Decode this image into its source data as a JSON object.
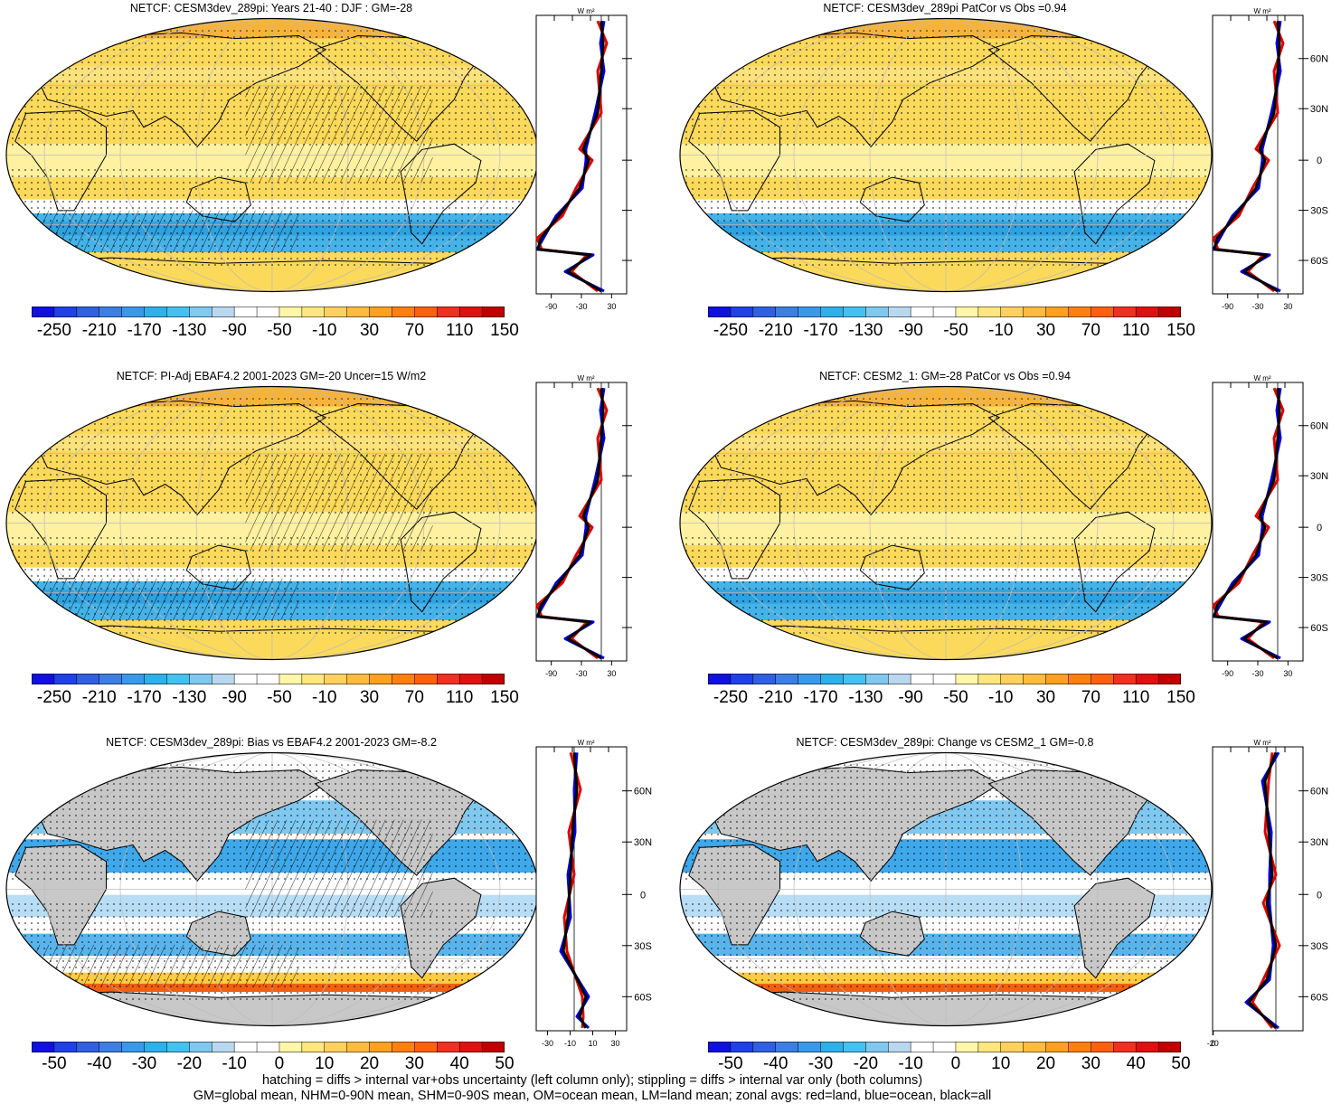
{
  "panels": [
    {
      "id": "p1",
      "title": "NETCF: CESM3dev_289pi: Years 21-40 : DJF : GM=-28",
      "style": "abs",
      "hatch": true,
      "profile": "abs",
      "xticks": [
        "-90",
        "-30",
        "30"
      ],
      "cbar": "abs"
    },
    {
      "id": "p2",
      "title": "NETCF: CESM3dev_289pi PatCor vs Obs =0.94",
      "style": "abs",
      "hatch": false,
      "profile": "abs",
      "xticks": [
        "-90",
        "-30",
        "30"
      ],
      "cbar": "abs"
    },
    {
      "id": "p3",
      "title": "NETCF: PI-Adj EBAF4.2 2001-2023 GM=-20 Uncer=15 W/m2",
      "style": "abs",
      "hatch": true,
      "profile": "abs",
      "xticks": [
        "-90",
        "-30",
        "30"
      ],
      "cbar": "abs"
    },
    {
      "id": "p4",
      "title": "NETCF: CESM2_1: GM=-28 PatCor vs Obs =0.94",
      "style": "abs",
      "hatch": false,
      "profile": "abs",
      "xticks": [
        "-90",
        "-30",
        "30"
      ],
      "cbar": "abs"
    },
    {
      "id": "p5",
      "title": "NETCF: CESM3dev_289pi: Bias vs EBAF4.2 2001-2023 GM=-8.2",
      "style": "diff",
      "hatch": true,
      "profile": "diff",
      "xticks": [
        "-30",
        "-10",
        "10",
        "30"
      ],
      "cbar": "diff"
    },
    {
      "id": "p6",
      "title": "NETCF: CESM3dev_289pi: Change vs CESM2_1 GM=-0.8",
      "style": "diff",
      "hatch": false,
      "profile": "diff2",
      "xticks": [
        "-20",
        "0"
      ],
      "cbar": "diff"
    }
  ],
  "profile_unit": "W m²",
  "lat_labels": [
    "60N",
    "30N",
    "0",
    "30S",
    "60S"
  ],
  "colorbars": {
    "abs": {
      "labels": [
        "-250",
        "-210",
        "-170",
        "-130",
        "-90",
        "-50",
        "-10",
        "30",
        "70",
        "110",
        "150"
      ]
    },
    "diff": {
      "labels": [
        "-50",
        "-40",
        "-30",
        "-20",
        "-10",
        "0",
        "10",
        "20",
        "30",
        "40",
        "50"
      ]
    }
  },
  "palette": [
    "#1010e0",
    "#2040e8",
    "#3060e0",
    "#3c7fe0",
    "#3b98e8",
    "#2fb0e8",
    "#45c0f0",
    "#80c8ef",
    "#b8d8f0",
    "#ffffff",
    "#ffffff",
    "#fff6a8",
    "#ffe680",
    "#ffd060",
    "#ffbb40",
    "#ffa020",
    "#ff8010",
    "#ff6010",
    "#f03020",
    "#e01010",
    "#c00000"
  ],
  "series_legend": {
    "land": "#e00000",
    "ocean": "#0000e0",
    "all": "#000000"
  },
  "footnote_lines": [
    "hatching = diffs > internal var+obs uncertainty (left column only); stippling = diffs > internal var only (both columns)",
    "GM=global mean, NHM=0-90N mean, SHM=0-90S mean, OM=ocean mean, LM=land mean; zonal avgs: red=land, blue=ocean, black=all"
  ]
}
